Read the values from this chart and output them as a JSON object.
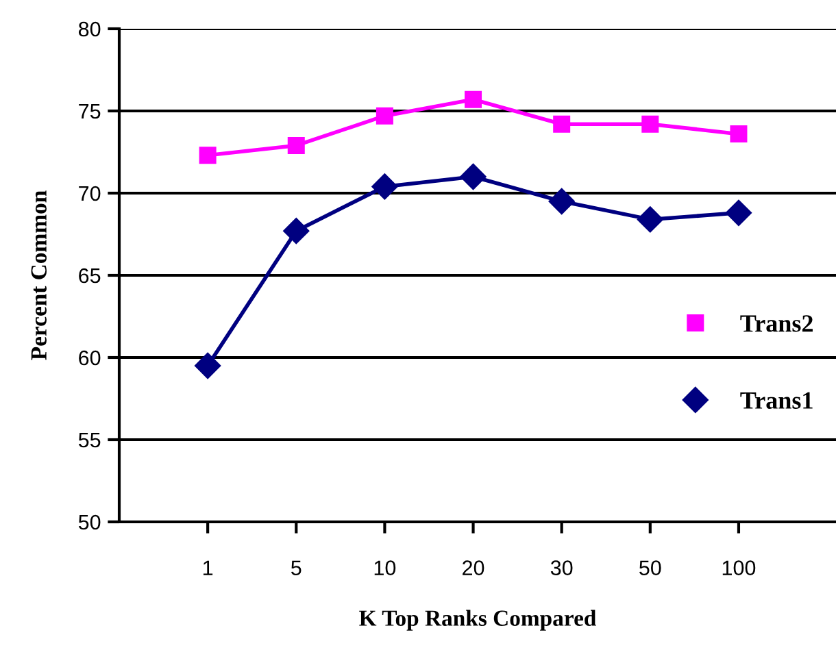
{
  "chart_data": {
    "type": "line",
    "xlabel": "K Top Ranks Compared",
    "ylabel": "Percent Common",
    "categories": [
      "1",
      "5",
      "10",
      "20",
      "30",
      "50",
      "100"
    ],
    "series": [
      {
        "name": "Trans2",
        "color": "#ff00ff",
        "marker": "square",
        "values": [
          72.3,
          72.9,
          74.7,
          75.7,
          74.2,
          74.2,
          73.6
        ]
      },
      {
        "name": "Trans1",
        "color": "#000080",
        "marker": "diamond",
        "values": [
          59.5,
          67.7,
          70.4,
          71.0,
          69.5,
          68.4,
          68.8
        ]
      }
    ],
    "ylim": [
      50,
      80
    ],
    "yticks": [
      50,
      55,
      60,
      65,
      70,
      75,
      80
    ],
    "grid": "y",
    "legend": "right",
    "line_style": "solid"
  }
}
